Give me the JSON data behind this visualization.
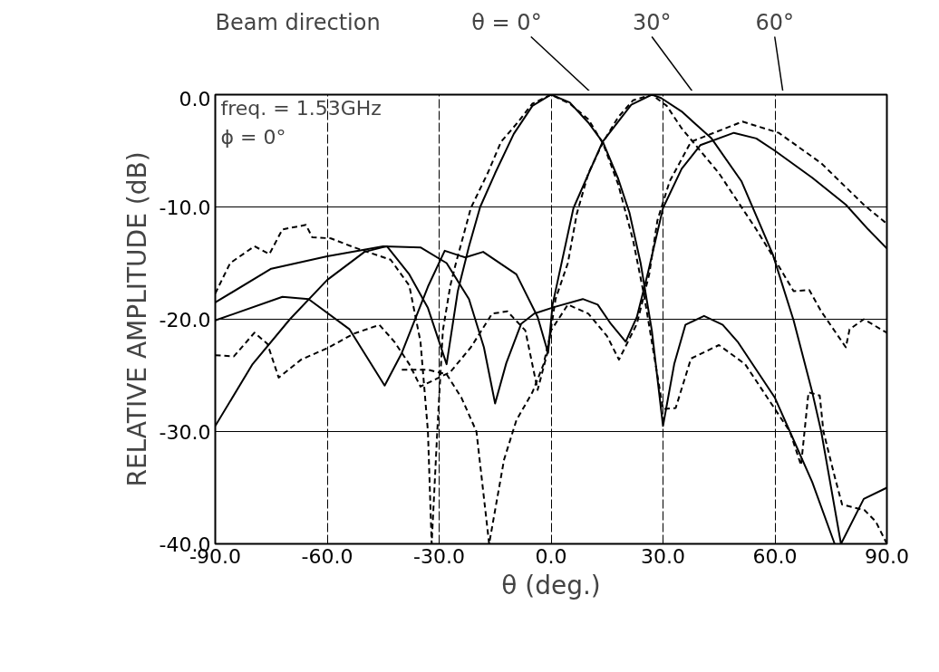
{
  "chart_data": {
    "type": "line",
    "title": "Beam direction",
    "xlabel": "θ (deg.)",
    "ylabel": "RELATIVE AMPLITUDE (dB)",
    "xlim": [
      -90,
      90
    ],
    "ylim": [
      -40,
      0
    ],
    "xticks": [
      {
        "value": -90,
        "label": "-90.0"
      },
      {
        "value": -60,
        "label": "-60.0"
      },
      {
        "value": -30,
        "label": "-30.0"
      },
      {
        "value": 0,
        "label": "0.0"
      },
      {
        "value": 30,
        "label": "30.0"
      },
      {
        "value": 60,
        "label": "60.0"
      },
      {
        "value": 90,
        "label": "90.0"
      }
    ],
    "yticks": [
      {
        "value": 0,
        "label": "0.0"
      },
      {
        "value": -10,
        "label": "-10.0"
      },
      {
        "value": -20,
        "label": "-20.0"
      },
      {
        "value": -30,
        "label": "-30.0"
      },
      {
        "value": -40,
        "label": "-40.0"
      }
    ],
    "grid": true,
    "marker": "none",
    "annotations": [
      "freq. = 1.53GHz",
      "ϕ = 0°",
      "θ = 0°",
      "30°",
      "60°"
    ],
    "series": [
      {
        "color": "#000000",
        "line_style": "solid",
        "x": [
          -90,
          -80,
          -70,
          -60,
          -50,
          -44,
          -38,
          -33,
          -28,
          -25,
          -22,
          -19,
          -15,
          -10,
          -5,
          0,
          5,
          10,
          14,
          18,
          21,
          24,
          27,
          30,
          33,
          36,
          41,
          46,
          50,
          55,
          60,
          64,
          70,
          76
        ],
        "values": [
          -29.5,
          -24,
          -20,
          -16.5,
          -14,
          -13.5,
          -16,
          -19,
          -24,
          -17.5,
          -13.5,
          -10,
          -7,
          -3.5,
          -1,
          0,
          -0.7,
          -2.5,
          -4.3,
          -7.5,
          -10.5,
          -15,
          -21,
          -29.5,
          -24,
          -20.5,
          -19.7,
          -20.5,
          -22,
          -24.5,
          -27,
          -30,
          -34.5,
          -40
        ]
      },
      {
        "color": "#000000",
        "line_style": "dashed",
        "x": [
          -90,
          -86,
          -79.5,
          -75.5,
          -72,
          -65.7,
          -64,
          -59,
          -52.8,
          -43,
          -38,
          -35,
          -33,
          -32,
          -30.5,
          -29,
          -27,
          -25.5,
          -21.5,
          -17,
          -13.4,
          -9,
          -5,
          0,
          5,
          10,
          14,
          18,
          22,
          25,
          27,
          30,
          33.4,
          37.5,
          45,
          52,
          60,
          64,
          67,
          69,
          72,
          73,
          76,
          78,
          84,
          87,
          90
        ],
        "values": [
          -17.7,
          -15,
          -13.5,
          -14.2,
          -12,
          -11.6,
          -12.7,
          -12.8,
          -13.6,
          -14.7,
          -17,
          -22,
          -30,
          -40,
          -30,
          -21,
          -17,
          -15,
          -10.1,
          -7,
          -4.2,
          -2.5,
          -0.8,
          0,
          -0.8,
          -2.2,
          -4.4,
          -8,
          -13,
          -18,
          -22,
          -28,
          -27.9,
          -23.5,
          -22.3,
          -24,
          -28,
          -30,
          -33,
          -26.5,
          -26.8,
          -30,
          -34,
          -36.5,
          -37,
          -38,
          -40
        ]
      },
      {
        "color": "#000000",
        "line_style": "solid",
        "x": [
          -90,
          -72,
          -65,
          -54,
          -44.6,
          -40,
          -33,
          -28.5,
          -23,
          -18.2,
          -9.3,
          -3.6,
          -0.8,
          0.4,
          6,
          13.8,
          21.5,
          27,
          29.5,
          35,
          43,
          51,
          59.4,
          65,
          70,
          72.4,
          77.7,
          83.8,
          90
        ],
        "values": [
          -20.1,
          -18,
          -18.2,
          -20.9,
          -25.9,
          -23,
          -17.1,
          -13.9,
          -14.5,
          -14,
          -16,
          -19.8,
          -23,
          -18.7,
          -10.1,
          -4.2,
          -0.9,
          0,
          -0.3,
          -1.5,
          -3.9,
          -7.7,
          -14.2,
          -20.1,
          -26.5,
          -30,
          -40,
          -36,
          -35
        ]
      },
      {
        "color": "#000000",
        "line_style": "dashed",
        "x": [
          -90,
          -85,
          -79.5,
          -76,
          -73,
          -67,
          -59.5,
          -53,
          -46,
          -42,
          -38,
          -35,
          -27,
          -21.5,
          -15.8,
          -11.7,
          -6.9,
          -3.6,
          -1,
          1.2,
          4.5,
          6.9,
          10,
          14,
          18,
          22,
          27,
          31,
          35,
          40,
          45,
          50,
          55,
          60,
          65,
          69.2,
          72.4,
          79,
          80,
          83.8,
          90
        ],
        "values": [
          -23.2,
          -23.3,
          -21.2,
          -22.2,
          -25.2,
          -23.6,
          -22.5,
          -21.3,
          -20.5,
          -22,
          -24,
          -26,
          -24.7,
          -22.5,
          -19.5,
          -19.3,
          -21,
          -26.3,
          -23,
          -18.2,
          -15,
          -10.6,
          -7,
          -4.2,
          -2,
          -0.5,
          0,
          -1,
          -3,
          -5,
          -7,
          -9.5,
          -12,
          -14.7,
          -17.5,
          -17.4,
          -19.3,
          -22.5,
          -20.9,
          -20,
          -21.2
        ]
      },
      {
        "color": "#000000",
        "line_style": "solid",
        "x": [
          -90,
          -75,
          -60,
          -45,
          -35,
          -28,
          -22,
          -18,
          -15,
          -12,
          -8,
          -4.5,
          1,
          8.5,
          12.5,
          16,
          20,
          23,
          26,
          30,
          35,
          40,
          49,
          55,
          60,
          70,
          79,
          85,
          90
        ],
        "values": [
          -18.5,
          -15.5,
          -14.4,
          -13.5,
          -13.6,
          -15,
          -18.2,
          -22.5,
          -27.5,
          -23.9,
          -20.4,
          -19.5,
          -18.9,
          -18.2,
          -18.7,
          -20.4,
          -22,
          -19.8,
          -15.8,
          -10.1,
          -6.6,
          -4.5,
          -3.4,
          -3.9,
          -5,
          -7.4,
          -9.8,
          -12,
          -13.7
        ]
      },
      {
        "color": "#000000",
        "line_style": "dashed",
        "x": [
          -40,
          -33,
          -28,
          -24,
          -20,
          -16.6,
          -12.6,
          -9.3,
          -5,
          -2,
          0,
          4.5,
          10,
          15,
          18.2,
          23,
          26.3,
          28.5,
          31.8,
          37.5,
          51.3,
          61,
          72.4,
          83.8,
          90
        ],
        "values": [
          -24.5,
          -24.5,
          -24.9,
          -27,
          -30,
          -40,
          -32.5,
          -29,
          -26.5,
          -24,
          -21,
          -18.7,
          -19.5,
          -21.5,
          -23.6,
          -20.4,
          -16,
          -11.2,
          -7.7,
          -4.2,
          -2.4,
          -3.4,
          -6.1,
          -9.8,
          -11.5
        ]
      }
    ]
  }
}
